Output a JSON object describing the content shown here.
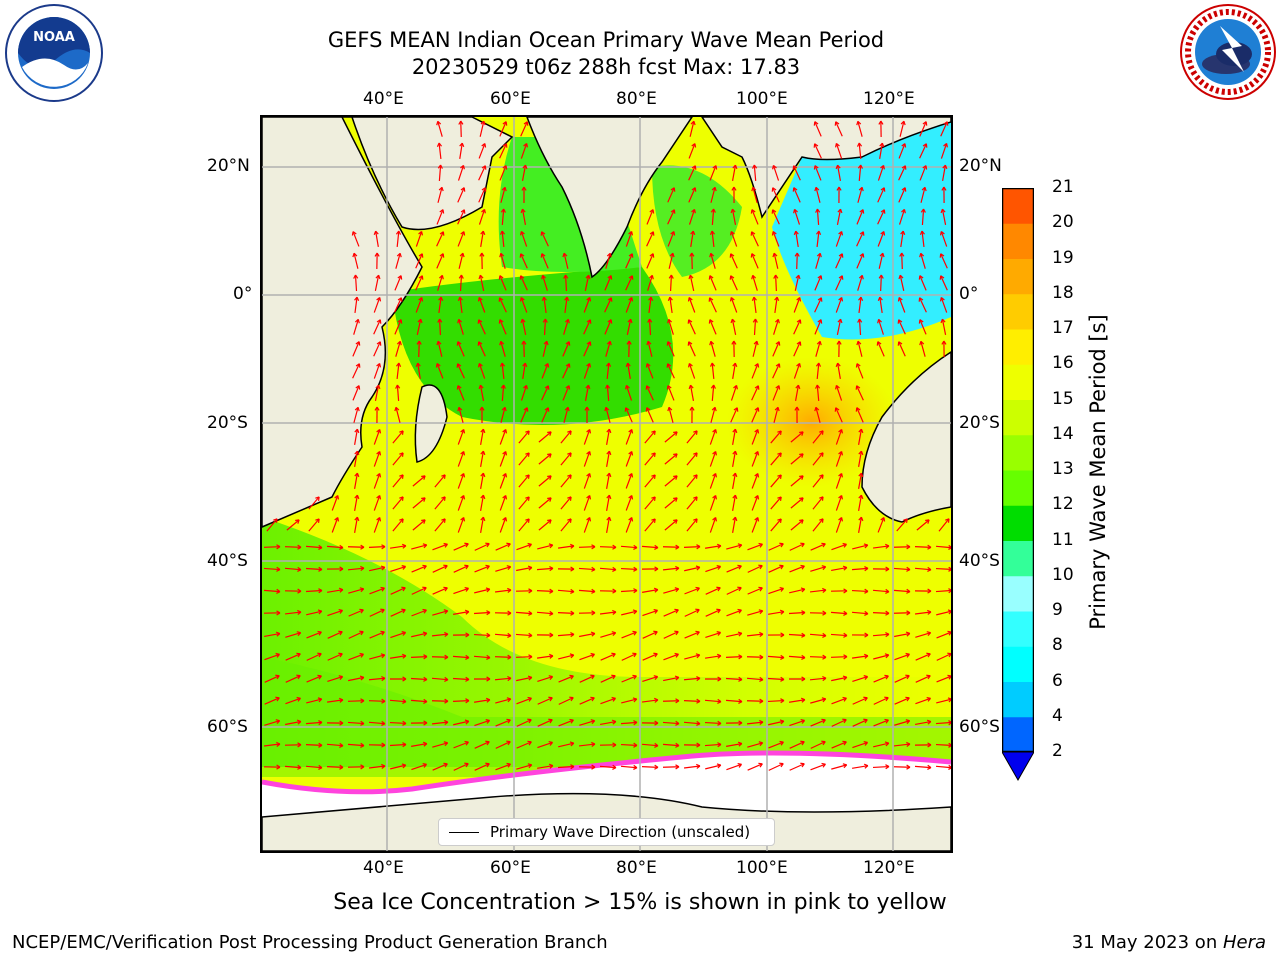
{
  "title": {
    "line1": "GEFS MEAN Indian Ocean Primary Wave Mean Period",
    "line2": "20230529 t06z 288h fcst   Max: 17.83"
  },
  "logos": {
    "left": {
      "icon": "noaa-logo-icon",
      "text": "NOAA",
      "ring_text": "NATIONAL OCEANIC AND ATMOSPHERIC ADMINISTRATION · U.S. DEPARTMENT OF COMMERCE"
    },
    "right": {
      "icon": "nws-logo-icon",
      "ring_text": "NATIONAL WEATHER SERVICE"
    }
  },
  "map": {
    "lon_labels": [
      "40°E",
      "60°E",
      "80°E",
      "100°E",
      "120°E"
    ],
    "lat_labels": [
      "20°N",
      "0°",
      "20°S",
      "40°S",
      "60°S"
    ],
    "lon_range": [
      20,
      130
    ],
    "lat_range": [
      -75,
      28
    ],
    "legend": "Primary Wave Direction (unscaled)",
    "colors": {
      "land": "#efeedd",
      "grid": "#b0b0b0",
      "arrows": "#ff0000",
      "ice": "#ffffff"
    }
  },
  "colorbar": {
    "label": "Primary Wave Mean Period [s]",
    "ticks": [
      "2",
      "4",
      "6",
      "8",
      "9",
      "10",
      "11",
      "12",
      "13",
      "14",
      "15",
      "16",
      "17",
      "18",
      "19",
      "20",
      "21"
    ],
    "colors": [
      "#0066ff",
      "#00ccff",
      "#00ffff",
      "#33ffff",
      "#99ffff",
      "#33ff99",
      "#00dd00",
      "#66ff00",
      "#99ff00",
      "#ccff00",
      "#eeff00",
      "#ffee00",
      "#ffcc00",
      "#ffaa00",
      "#ff8800",
      "#ff5500",
      "#ff2200",
      "#ff0000"
    ],
    "extend_color": "#0000ee"
  },
  "footer": {
    "note": "Sea Ice Concentration > 15% is shown in pink to yellow",
    "left": "NCEP/EMC/Verification Post Processing Product Generation Branch",
    "right_prefix": "31 May 2023 on ",
    "right_italic": "Hera"
  }
}
